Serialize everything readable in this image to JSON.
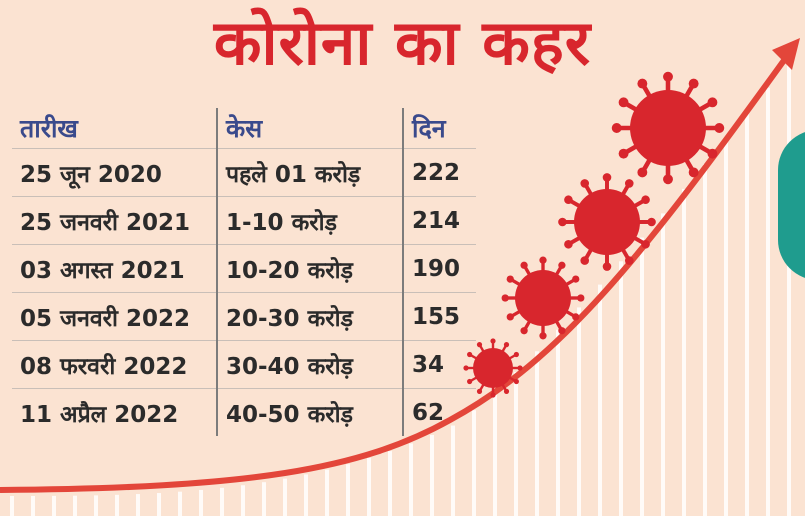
{
  "headline": "कोरोना का कहर",
  "table": {
    "headers": [
      "तारीख",
      "केस",
      "दिन"
    ],
    "rows": [
      [
        "25 जून 2020",
        "पहले 01 करोड़",
        "222"
      ],
      [
        "25 जनवरी 2021",
        "1-10 करोड़",
        "214"
      ],
      [
        "03 अगस्त 2021",
        "10-20 करोड़",
        "190"
      ],
      [
        "05 जनवरी 2022",
        "20-30 करोड़",
        "155"
      ],
      [
        "08 फरवरी 2022",
        "30-40 करोड़",
        "34"
      ],
      [
        "11 अप्रैल 2022",
        "40-50 करोड़",
        "62"
      ]
    ]
  },
  "colors": {
    "background": "#fbe3d2",
    "accent_red": "#d8262d",
    "header_blue": "#3a4a8c",
    "virus_red": "#d8262d",
    "teal": "#1f9c8e"
  },
  "icons": [
    "virus-icon",
    "virus-icon",
    "virus-icon",
    "virus-icon",
    "trend-arrow"
  ]
}
